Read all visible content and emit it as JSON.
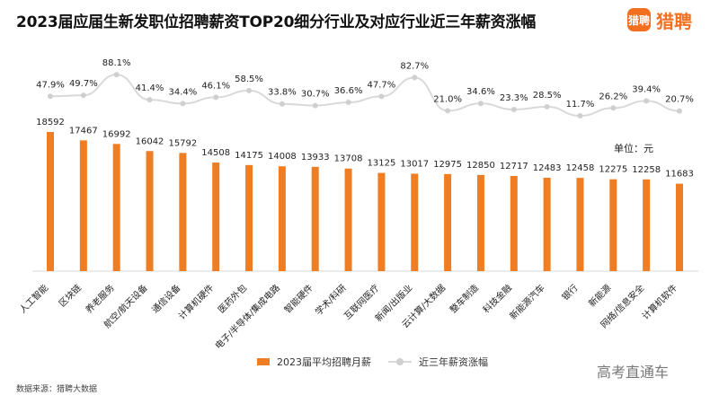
{
  "title": "2023届应届生新发职位招聘薪资TOP20细分行业及对应行业近三年薪资涨幅",
  "logo": {
    "mark": "猎聘",
    "text": "猎聘"
  },
  "unit_label": "单位：元",
  "source_text": "数据来源：猎聘大数据",
  "watermark": "高考直通车",
  "legend": {
    "bar": "2023届平均招聘月薪",
    "line": "近三年薪资涨幅"
  },
  "colors": {
    "bar": "#ef7d24",
    "line": "#d9d9d9",
    "axis": "#d9d9d9",
    "text": "#222222"
  },
  "chart_data": {
    "type": "bar",
    "title": "2023届应届生新发职位招聘薪资TOP20细分行业及对应行业近三年薪资涨幅",
    "categories": [
      "人工智能",
      "区块链",
      "养老服务",
      "航空/航天设备",
      "通信设备",
      "计算机硬件",
      "医药外包",
      "电子/半导体/集成电路",
      "智能硬件",
      "学术/科研",
      "互联网医疗",
      "新闻/出版业",
      "云计算/大数据",
      "整车制造",
      "科技金融",
      "新能源汽车",
      "银行",
      "新能源",
      "网络/信息安全",
      "计算机软件"
    ],
    "series": [
      {
        "name": "2023届平均招聘月薪",
        "type": "bar",
        "values": [
          18592,
          17467,
          16992,
          16042,
          15792,
          14508,
          14175,
          14008,
          13933,
          13708,
          13125,
          13017,
          12975,
          12850,
          12717,
          12483,
          12458,
          12275,
          12258,
          11683
        ]
      },
      {
        "name": "近三年薪资涨幅",
        "type": "line",
        "values": [
          47.9,
          49.7,
          88.1,
          41.4,
          34.4,
          46.1,
          58.5,
          33.8,
          30.7,
          36.6,
          47.7,
          82.7,
          21.0,
          34.6,
          23.3,
          28.5,
          11.7,
          26.2,
          39.4,
          20.7
        ]
      }
    ],
    "value_labels": {
      "bars": [
        "18592",
        "17467",
        "16992",
        "16042",
        "15792",
        "14508",
        "14175",
        "14008",
        "13933",
        "13708",
        "13125",
        "13017",
        "12975",
        "12850",
        "12717",
        "12483",
        "12458",
        "12275",
        "12258",
        "11683"
      ],
      "line": [
        "47.9%",
        "49.7%",
        "88.1%",
        "41.4%",
        "34.4%",
        "46.1%",
        "58.5%",
        "33.8%",
        "30.7%",
        "36.6%",
        "47.7%",
        "82.7%",
        "21.0%",
        "34.6%",
        "23.3%",
        "28.5%",
        "11.7%",
        "26.2%",
        "39.4%",
        "20.7%"
      ]
    },
    "ylabel": "",
    "xlabel": "",
    "unit": "元",
    "grid": false,
    "legend_position": "bottom"
  }
}
